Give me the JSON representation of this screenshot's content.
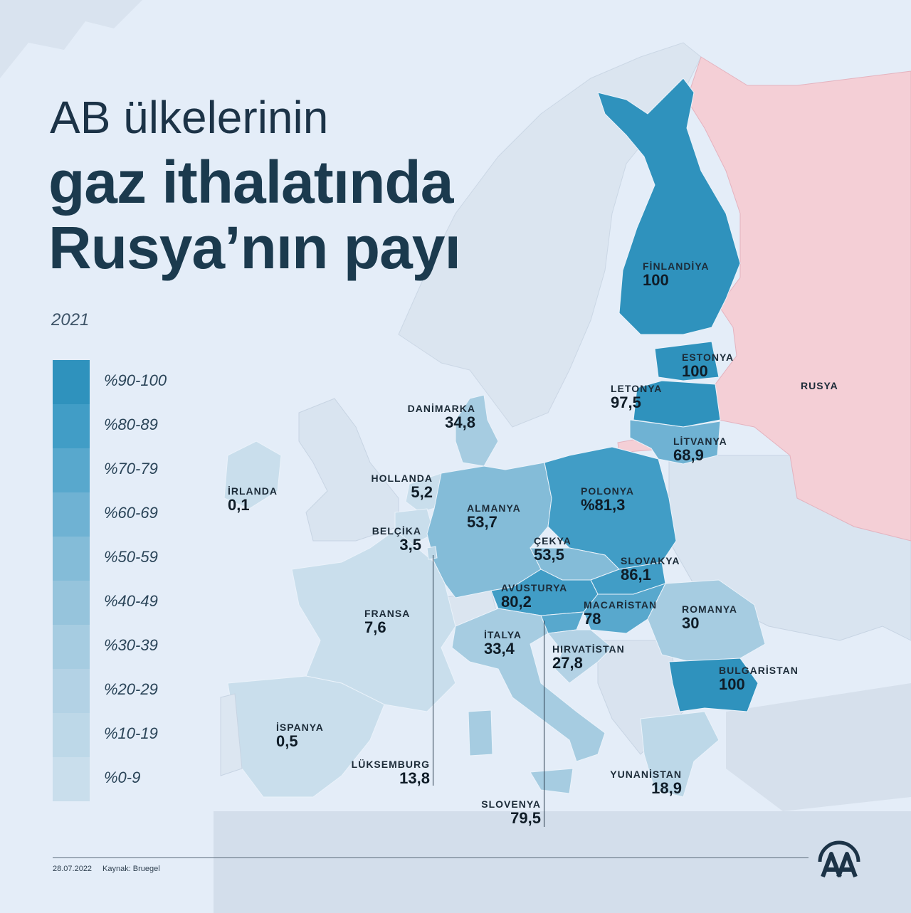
{
  "title": {
    "line1": "AB ülkelerinin",
    "line2": "gaz ithalatında",
    "line3": "Rusya’nın payı"
  },
  "year": "2021",
  "legend": [
    {
      "label": "%90-100",
      "color": "#2f92bd"
    },
    {
      "label": "%80-89",
      "color": "#419dc6"
    },
    {
      "label": "%70-79",
      "color": "#58a8cd"
    },
    {
      "label": "%60-69",
      "color": "#6fb2d3"
    },
    {
      "label": "%50-59",
      "color": "#84bcd8"
    },
    {
      "label": "%40-49",
      "color": "#96c4dc"
    },
    {
      "label": "%30-39",
      "color": "#a6cce1"
    },
    {
      "label": "%20-29",
      "color": "#b3d2e5"
    },
    {
      "label": "%10-19",
      "color": "#bdd8e8"
    },
    {
      "label": "%0-9",
      "color": "#c9deec"
    }
  ],
  "countries": {
    "finlandiya": {
      "name": "FİNLANDİYA",
      "value": "100"
    },
    "estonya": {
      "name": "ESTONYA",
      "value": "100"
    },
    "letonya": {
      "name": "LETONYA",
      "value": "97,5"
    },
    "litvanya": {
      "name": "LİTVANYA",
      "value": "68,9"
    },
    "rusya": {
      "name": "RUSYA"
    },
    "danimarka": {
      "name": "DANİMARKA",
      "value": "34,8"
    },
    "hollanda": {
      "name": "HOLLANDA",
      "value": "5,2"
    },
    "irlanda": {
      "name": "İRLANDA",
      "value": "0,1"
    },
    "almanya": {
      "name": "ALMANYA",
      "value": "53,7"
    },
    "polonya": {
      "name": "POLONYA",
      "value": "%81,3"
    },
    "belcika": {
      "name": "BELÇİKA",
      "value": "3,5"
    },
    "cekya": {
      "name": "ÇEKYA",
      "value": "53,5"
    },
    "slovakya": {
      "name": "SLOVAKYA",
      "value": "86,1"
    },
    "avusturya": {
      "name": "AVUSTURYA",
      "value": "80,2"
    },
    "macaristan": {
      "name": "MACARİSTAN",
      "value": "78"
    },
    "romanya": {
      "name": "ROMANYA",
      "value": "30"
    },
    "fransa": {
      "name": "FRANSA",
      "value": "7,6"
    },
    "italya": {
      "name": "İTALYA",
      "value": "33,4"
    },
    "hirvatistan": {
      "name": "HIRVATİSTAN",
      "value": "27,8"
    },
    "bulgaristan": {
      "name": "BULGARİSTAN",
      "value": "100"
    },
    "ispanya": {
      "name": "İSPANYA",
      "value": "0,5"
    },
    "luksemburg": {
      "name": "LÜKSEMBURG",
      "value": "13,8"
    },
    "yunanistan": {
      "name": "YUNANİSTAN",
      "value": "18,9"
    },
    "slovenya": {
      "name": "SLOVENYA",
      "value": "79,5"
    }
  },
  "footer": {
    "date": "28.07.2022",
    "source": "Kaynak: Bruegel"
  },
  "colors": {
    "background": "#e4edf8",
    "russia": "#f4cfd6",
    "non_eu_land": "#dce6f1",
    "title": "#1b3a4e"
  }
}
